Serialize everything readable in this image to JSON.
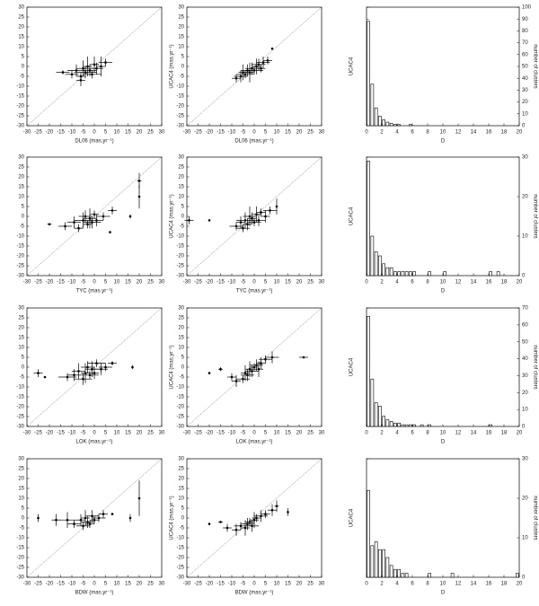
{
  "chart_data": [
    {
      "type": "scatter",
      "xlabel": "DL06 (mas.yr⁻¹)",
      "xlim": [
        -30,
        30
      ],
      "ylim": [
        -30,
        30
      ],
      "xticks": [
        -30,
        -25,
        -20,
        -15,
        -10,
        -5,
        0,
        5,
        10,
        15,
        20,
        25,
        30
      ],
      "yticks": [
        -30,
        -25,
        -20,
        -15,
        -10,
        -5,
        0,
        5,
        10,
        15,
        20,
        25,
        30
      ],
      "x": [
        -14,
        -10,
        -8,
        -6,
        -5,
        -4,
        -3,
        -2,
        -1,
        0,
        1,
        3,
        5,
        -6
      ],
      "y": [
        -3,
        -4,
        -2,
        -5,
        -1,
        -3,
        0,
        -2,
        -4,
        1,
        -1,
        0,
        2,
        -7
      ],
      "xerr": [
        3,
        3,
        4,
        2,
        3,
        5,
        2,
        3,
        4,
        2,
        3,
        2,
        3,
        2
      ],
      "yerr": [
        1,
        2,
        3,
        2,
        4,
        3,
        5,
        3,
        2,
        4,
        3,
        5,
        2,
        3
      ]
    },
    {
      "type": "scatter",
      "xlabel": "DL06 (mas.yr⁻¹)",
      "ylabel": "UCAC4 (mas.yr⁻¹)",
      "xlim": [
        -30,
        30
      ],
      "ylim": [
        -30,
        30
      ],
      "xticks": [
        -30,
        -25,
        -20,
        -15,
        -10,
        -5,
        0,
        5,
        10,
        15,
        20,
        25,
        30
      ],
      "yticks": [
        -30,
        -25,
        -20,
        -15,
        -10,
        -5,
        0,
        5,
        10,
        15,
        20,
        25,
        30
      ],
      "x": [
        -8,
        -6,
        -5,
        -4,
        -3,
        -2,
        -1,
        0,
        1,
        2,
        3,
        4,
        6,
        8
      ],
      "y": [
        -6,
        -5,
        -3,
        -4,
        -2,
        -3,
        -1,
        -2,
        0,
        1,
        -1,
        2,
        3,
        9
      ],
      "xerr": [
        2,
        3,
        2,
        4,
        3,
        2,
        3,
        4,
        2,
        3,
        2,
        3,
        2,
        0
      ],
      "yerr": [
        2,
        3,
        4,
        2,
        3,
        5,
        3,
        2,
        4,
        3,
        2,
        3,
        2,
        0
      ]
    },
    {
      "type": "histogram",
      "xlabel": "D",
      "ylabel": "UCAC4",
      "y2label": "number of clusters",
      "xlim": [
        0,
        20
      ],
      "ylim": [
        0,
        100
      ],
      "xticks": [
        0,
        2,
        4,
        6,
        8,
        10,
        12,
        14,
        16,
        18,
        20
      ],
      "yticks": [
        0,
        10,
        20,
        30,
        40,
        50,
        60,
        70,
        80,
        90,
        100
      ],
      "bins": [
        0,
        0.5,
        1,
        1.5,
        2,
        2.5,
        3,
        3.5,
        4,
        4.5,
        5,
        5.5,
        6,
        6.5,
        7,
        7.5,
        8,
        8.5,
        9,
        9.5,
        10,
        10.5,
        11,
        11.5,
        12,
        12.5,
        13,
        13.5,
        14,
        14.5,
        15,
        15.5,
        16,
        16.5,
        17,
        17.5,
        18,
        18.5,
        19,
        19.5,
        20
      ],
      "counts": [
        88,
        35,
        15,
        8,
        5,
        3,
        2,
        1,
        1,
        0,
        0,
        1,
        0,
        0,
        0,
        0,
        0,
        0,
        0,
        0,
        0,
        0,
        0,
        0,
        0,
        0,
        0,
        0,
        0,
        0,
        0,
        0,
        0,
        0,
        0,
        0,
        0,
        0,
        0,
        0
      ]
    },
    {
      "type": "scatter",
      "xlabel": "TYC (mas.yr⁻¹)",
      "xlim": [
        -30,
        30
      ],
      "ylim": [
        -30,
        30
      ],
      "xticks": [
        -30,
        -25,
        -20,
        -15,
        -10,
        -5,
        0,
        5,
        10,
        15,
        20,
        25,
        30
      ],
      "yticks": [
        -30,
        -25,
        -20,
        -15,
        -10,
        -5,
        0,
        5,
        10,
        15,
        20,
        25,
        30
      ],
      "x": [
        -20,
        -13,
        -9,
        -7,
        -5,
        -4,
        -3,
        -2,
        -1,
        0,
        1,
        4,
        8,
        16,
        20,
        20,
        7
      ],
      "y": [
        -4,
        -5,
        -3,
        -6,
        -2,
        0,
        -4,
        -1,
        -3,
        1,
        -2,
        0,
        3,
        0,
        18,
        10,
        -8
      ],
      "xerr": [
        1,
        3,
        3,
        2,
        4,
        3,
        2,
        3,
        4,
        2,
        3,
        3,
        2,
        0,
        1,
        0,
        0
      ],
      "yerr": [
        0,
        2,
        3,
        2,
        4,
        3,
        2,
        5,
        3,
        2,
        3,
        2,
        2,
        1,
        4,
        6,
        0
      ]
    },
    {
      "type": "scatter",
      "xlabel": "TYC (mas.yr⁻¹)",
      "ylabel": "UCAC4 (mas.yr⁻¹)",
      "xlim": [
        -30,
        30
      ],
      "ylim": [
        -30,
        30
      ],
      "xticks": [
        -30,
        -25,
        -20,
        -15,
        -10,
        -5,
        0,
        5,
        10,
        15,
        20,
        25,
        30
      ],
      "yticks": [
        -30,
        -25,
        -20,
        -15,
        -10,
        -5,
        0,
        5,
        10,
        15,
        20,
        25,
        30
      ],
      "x": [
        -29,
        -20,
        -8,
        -6,
        -5,
        -4,
        -3,
        -2,
        -1,
        0,
        1,
        2,
        3,
        5,
        7,
        10
      ],
      "y": [
        -2,
        -2,
        -5,
        -3,
        -6,
        -2,
        -4,
        0,
        -1,
        -3,
        1,
        -2,
        2,
        0,
        3,
        5
      ],
      "xerr": [
        2,
        0,
        3,
        2,
        3,
        4,
        2,
        3,
        2,
        3,
        2,
        3,
        2,
        2,
        3,
        0
      ],
      "yerr": [
        2,
        0,
        2,
        3,
        2,
        4,
        3,
        5,
        3,
        2,
        4,
        3,
        2,
        3,
        2,
        4
      ]
    },
    {
      "type": "histogram",
      "xlabel": "D",
      "ylabel": "UCAC4",
      "y2label": "number of clusters",
      "xlim": [
        0,
        20
      ],
      "ylim": [
        0,
        30
      ],
      "xticks": [
        0,
        2,
        4,
        6,
        8,
        10,
        12,
        14,
        16,
        18,
        20
      ],
      "yticks": [
        0,
        10,
        20,
        30
      ],
      "bins": [
        0,
        0.5,
        1,
        1.5,
        2,
        2.5,
        3,
        3.5,
        4,
        4.5,
        5,
        5.5,
        6,
        6.5,
        7,
        7.5,
        8,
        8.5,
        9,
        9.5,
        10,
        10.5,
        11,
        11.5,
        12,
        12.5,
        13,
        13.5,
        14,
        14.5,
        15,
        15.5,
        16,
        16.5,
        17,
        17.5,
        18,
        18.5,
        19,
        19.5,
        20
      ],
      "counts": [
        29,
        10,
        6,
        5,
        3,
        2,
        2,
        1,
        1,
        1,
        1,
        1,
        1,
        0,
        0,
        0,
        1,
        0,
        0,
        0,
        1,
        0,
        0,
        0,
        0,
        0,
        0,
        0,
        0,
        0,
        0,
        0,
        1,
        0,
        1,
        0,
        0,
        0,
        0,
        0
      ]
    },
    {
      "type": "scatter",
      "xlabel": "LOK (mas.yr⁻¹)",
      "xlim": [
        -30,
        30
      ],
      "ylim": [
        -30,
        30
      ],
      "xticks": [
        -30,
        -25,
        -20,
        -15,
        -10,
        -5,
        0,
        5,
        10,
        15,
        20,
        25,
        30
      ],
      "yticks": [
        -30,
        -25,
        -20,
        -15,
        -10,
        -5,
        0,
        5,
        10,
        15,
        20,
        25,
        30
      ],
      "x": [
        -25,
        -22,
        -12,
        -9,
        -7,
        -5,
        -4,
        -3,
        -2,
        -1,
        0,
        1,
        3,
        5,
        8,
        17
      ],
      "y": [
        -3,
        -5,
        -5,
        -4,
        -2,
        -6,
        -3,
        0,
        -4,
        -1,
        -3,
        2,
        -1,
        0,
        2,
        0
      ],
      "xerr": [
        2,
        0,
        4,
        3,
        3,
        4,
        2,
        3,
        4,
        3,
        2,
        4,
        3,
        3,
        2,
        0
      ],
      "yerr": [
        2,
        0,
        2,
        3,
        4,
        3,
        5,
        3,
        2,
        4,
        3,
        2,
        3,
        2,
        1,
        1
      ]
    },
    {
      "type": "scatter",
      "xlabel": "LOK (mas.yr⁻¹)",
      "ylabel": "UCAC4 (mas.yr⁻¹)",
      "xlim": [
        -30,
        30
      ],
      "ylim": [
        -30,
        30
      ],
      "xticks": [
        -30,
        -25,
        -20,
        -15,
        -10,
        -5,
        0,
        5,
        10,
        15,
        20,
        25,
        30
      ],
      "yticks": [
        -30,
        -25,
        -20,
        -15,
        -10,
        -5,
        0,
        5,
        10,
        15,
        20,
        25,
        30
      ],
      "x": [
        -20,
        -15,
        -10,
        -8,
        -5,
        -4,
        -3,
        -2,
        -1,
        0,
        1,
        2,
        3,
        5,
        8,
        22
      ],
      "y": [
        -3,
        -1,
        -5,
        -7,
        -6,
        -3,
        -4,
        -1,
        -2,
        0,
        1,
        -1,
        2,
        4,
        5,
        5
      ],
      "xerr": [
        0,
        1,
        2,
        2,
        3,
        2,
        3,
        2,
        3,
        2,
        3,
        2,
        2,
        3,
        3,
        2
      ],
      "yerr": [
        0,
        1,
        2,
        3,
        2,
        4,
        3,
        4,
        3,
        2,
        3,
        4,
        3,
        2,
        3,
        0
      ]
    },
    {
      "type": "histogram",
      "xlabel": "D",
      "ylabel": "UCAC4",
      "y2label": "number of clusters",
      "xlim": [
        0,
        20
      ],
      "ylim": [
        0,
        70
      ],
      "xticks": [
        0,
        2,
        4,
        6,
        8,
        10,
        12,
        14,
        16,
        18,
        20
      ],
      "yticks": [
        0,
        10,
        20,
        30,
        40,
        50,
        60,
        70
      ],
      "bins": [
        0,
        0.5,
        1,
        1.5,
        2,
        2.5,
        3,
        3.5,
        4,
        4.5,
        5,
        5.5,
        6,
        6.5,
        7,
        7.5,
        8,
        8.5,
        9,
        9.5,
        10,
        10.5,
        11,
        11.5,
        12,
        12.5,
        13,
        13.5,
        14,
        14.5,
        15,
        15.5,
        16,
        16.5,
        17,
        17.5,
        18,
        18.5,
        19,
        19.5,
        20
      ],
      "counts": [
        65,
        28,
        14,
        12,
        6,
        4,
        3,
        2,
        2,
        1,
        1,
        1,
        1,
        0,
        1,
        0,
        1,
        0,
        0,
        0,
        0,
        0,
        0,
        0,
        0,
        0,
        0,
        0,
        0,
        0,
        0,
        0,
        1,
        0,
        0,
        0,
        0,
        0,
        0,
        0
      ]
    },
    {
      "type": "scatter",
      "xlabel": "BDW (mas.yr⁻¹)",
      "xlim": [
        -30,
        30
      ],
      "ylim": [
        -30,
        30
      ],
      "xticks": [
        -30,
        -25,
        -20,
        -15,
        -10,
        -5,
        0,
        5,
        10,
        15,
        20,
        25,
        30
      ],
      "yticks": [
        -30,
        -25,
        -20,
        -15,
        -10,
        -5,
        0,
        5,
        10,
        15,
        20,
        25,
        30
      ],
      "x": [
        -25,
        -17,
        -12,
        -9,
        -6,
        -5,
        -4,
        -3,
        -2,
        -1,
        0,
        2,
        4,
        8,
        16,
        20
      ],
      "y": [
        0,
        -1,
        -1,
        -3,
        -1,
        -4,
        0,
        -2,
        -3,
        1,
        -1,
        0,
        2,
        2,
        0,
        10
      ],
      "xerr": [
        0,
        2,
        4,
        3,
        2,
        3,
        2,
        3,
        2,
        3,
        2,
        3,
        2,
        0,
        0,
        0
      ],
      "yerr": [
        2,
        3,
        4,
        2,
        3,
        2,
        4,
        3,
        2,
        3,
        2,
        2,
        2,
        0,
        2,
        9
      ]
    },
    {
      "type": "scatter",
      "xlabel": "BDW (mas.yr⁻¹)",
      "ylabel": "UCAC4 (mas.yr⁻¹)",
      "xlim": [
        -30,
        30
      ],
      "ylim": [
        -30,
        30
      ],
      "xticks": [
        -30,
        -25,
        -20,
        -15,
        -10,
        -5,
        0,
        5,
        10,
        15,
        20,
        25,
        30
      ],
      "yticks": [
        -30,
        -25,
        -20,
        -15,
        -10,
        -5,
        0,
        5,
        10,
        15,
        20,
        25,
        30
      ],
      "x": [
        -20,
        -15,
        -12,
        -8,
        -6,
        -4,
        -3,
        -2,
        -1,
        0,
        1,
        3,
        5,
        8,
        10,
        15
      ],
      "y": [
        -3,
        -2,
        -5,
        -6,
        -4,
        -5,
        -3,
        -2,
        -4,
        -1,
        0,
        1,
        2,
        4,
        6,
        3
      ],
      "xerr": [
        0,
        1,
        2,
        2,
        3,
        2,
        3,
        2,
        3,
        2,
        2,
        3,
        2,
        2,
        1,
        0
      ],
      "yerr": [
        0,
        0,
        2,
        3,
        2,
        4,
        3,
        2,
        3,
        4,
        2,
        3,
        2,
        3,
        3,
        2
      ]
    },
    {
      "type": "histogram",
      "xlabel": "D",
      "ylabel": "UCAC4",
      "y2label": "number of clusters",
      "xlim": [
        0,
        20
      ],
      "ylim": [
        0,
        30
      ],
      "xticks": [
        0,
        2,
        4,
        6,
        8,
        10,
        12,
        14,
        16,
        18,
        20
      ],
      "yticks": [
        0,
        10,
        20,
        30
      ],
      "bins": [
        0,
        0.5,
        1,
        1.5,
        2,
        2.5,
        3,
        3.5,
        4,
        4.5,
        5,
        5.5,
        6,
        6.5,
        7,
        7.5,
        8,
        8.5,
        9,
        9.5,
        10,
        10.5,
        11,
        11.5,
        12,
        12.5,
        13,
        13.5,
        14,
        14.5,
        15,
        15.5,
        16,
        16.5,
        17,
        17.5,
        18,
        18.5,
        19,
        19.5,
        20
      ],
      "counts": [
        22,
        8,
        9,
        7,
        7,
        5,
        3,
        2,
        2,
        1,
        1,
        0,
        0,
        0,
        0,
        0,
        1,
        0,
        0,
        0,
        0,
        0,
        1,
        0,
        0,
        0,
        0,
        0,
        0,
        0,
        0,
        0,
        0,
        0,
        0,
        0,
        0,
        0,
        0,
        1
      ]
    }
  ]
}
